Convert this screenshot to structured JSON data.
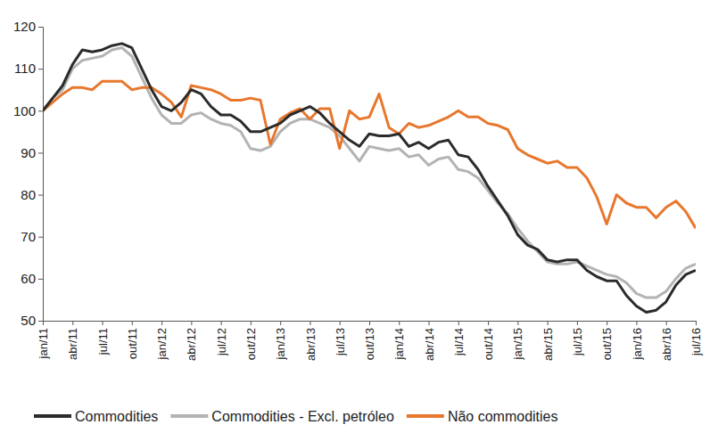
{
  "chart_data": {
    "type": "line",
    "categories": [
      "jan/11",
      null,
      null,
      "abr/11",
      null,
      null,
      "jul/11",
      null,
      null,
      "out/11",
      null,
      null,
      "jan/12",
      null,
      null,
      "abr/12",
      null,
      null,
      "jul/12",
      null,
      null,
      "out/12",
      null,
      null,
      "jan/13",
      null,
      null,
      "abr/13",
      null,
      null,
      "jul/13",
      null,
      null,
      "out/13",
      null,
      null,
      "jan/14",
      null,
      null,
      "abr/14",
      null,
      null,
      "jul/14",
      null,
      null,
      "out/14",
      null,
      null,
      "jan/15",
      null,
      null,
      "abr/15",
      null,
      null,
      "jul/15",
      null,
      null,
      "out/15",
      null,
      null,
      "jan/16",
      null,
      null,
      "abr/16",
      null,
      null,
      "jul/16"
    ],
    "series": [
      {
        "name": "Commodities",
        "color": "#2b2b2b",
        "values": [
          100,
          103,
          106,
          111,
          114.5,
          114,
          114.5,
          115.5,
          116,
          115,
          110,
          105,
          101,
          100,
          102,
          105,
          104,
          101,
          99,
          99,
          97.5,
          95,
          95,
          96,
          97,
          99,
          100,
          101,
          99.5,
          97,
          95,
          93,
          91.5,
          94.5,
          94,
          94,
          94.5,
          91.5,
          92.5,
          91,
          92.5,
          93,
          89.5,
          89,
          86,
          82,
          78.5,
          75,
          70.5,
          68,
          67,
          64.5,
          64,
          64.5,
          64.5,
          62,
          60.5,
          59.5,
          59.5,
          56,
          53.5,
          52,
          52.5,
          54.5,
          58.5,
          61,
          62
        ]
      },
      {
        "name": "Commodities - Excl. petróleo",
        "color": "#b3b3b3",
        "values": [
          100,
          103,
          105,
          110,
          112,
          112.5,
          113,
          114.5,
          115,
          113,
          108,
          103,
          99,
          97,
          97,
          99,
          99.5,
          98,
          97,
          96.5,
          95,
          91,
          90.5,
          91.5,
          95,
          97,
          98,
          98,
          97,
          96,
          94,
          91,
          88,
          91.5,
          91,
          90.5,
          91,
          89,
          89.5,
          87,
          88.5,
          89,
          86,
          85.5,
          84,
          81,
          78,
          75.5,
          72,
          69,
          66.5,
          64,
          63.5,
          63.5,
          64,
          63,
          62,
          61,
          60.5,
          59,
          56.5,
          55.5,
          55.5,
          57,
          60,
          62.5,
          63.5
        ]
      },
      {
        "name": "Não commodities",
        "color": "#e8772e",
        "values": [
          100,
          102,
          104,
          105.5,
          105.5,
          105,
          107,
          107,
          107,
          105,
          105.5,
          105.5,
          104,
          102,
          98.5,
          106,
          105.5,
          105,
          104,
          102.5,
          102.5,
          103,
          102.5,
          92,
          98,
          99.5,
          100.5,
          98,
          100.5,
          100.5,
          91,
          100,
          98,
          98.5,
          104,
          96,
          94.5,
          97,
          96,
          96.5,
          97.5,
          98.5,
          100,
          98.5,
          98.5,
          97,
          96.5,
          95.5,
          91,
          89.5,
          88.5,
          87.5,
          88,
          86.5,
          86.5,
          84,
          79.5,
          73,
          80,
          78,
          77,
          77,
          74.5,
          77,
          78.5,
          76,
          72
        ]
      }
    ],
    "ylim": [
      50,
      120
    ],
    "yticks": [
      50,
      60,
      70,
      80,
      90,
      100,
      110,
      120
    ],
    "grid": false,
    "legend": "bottom"
  }
}
